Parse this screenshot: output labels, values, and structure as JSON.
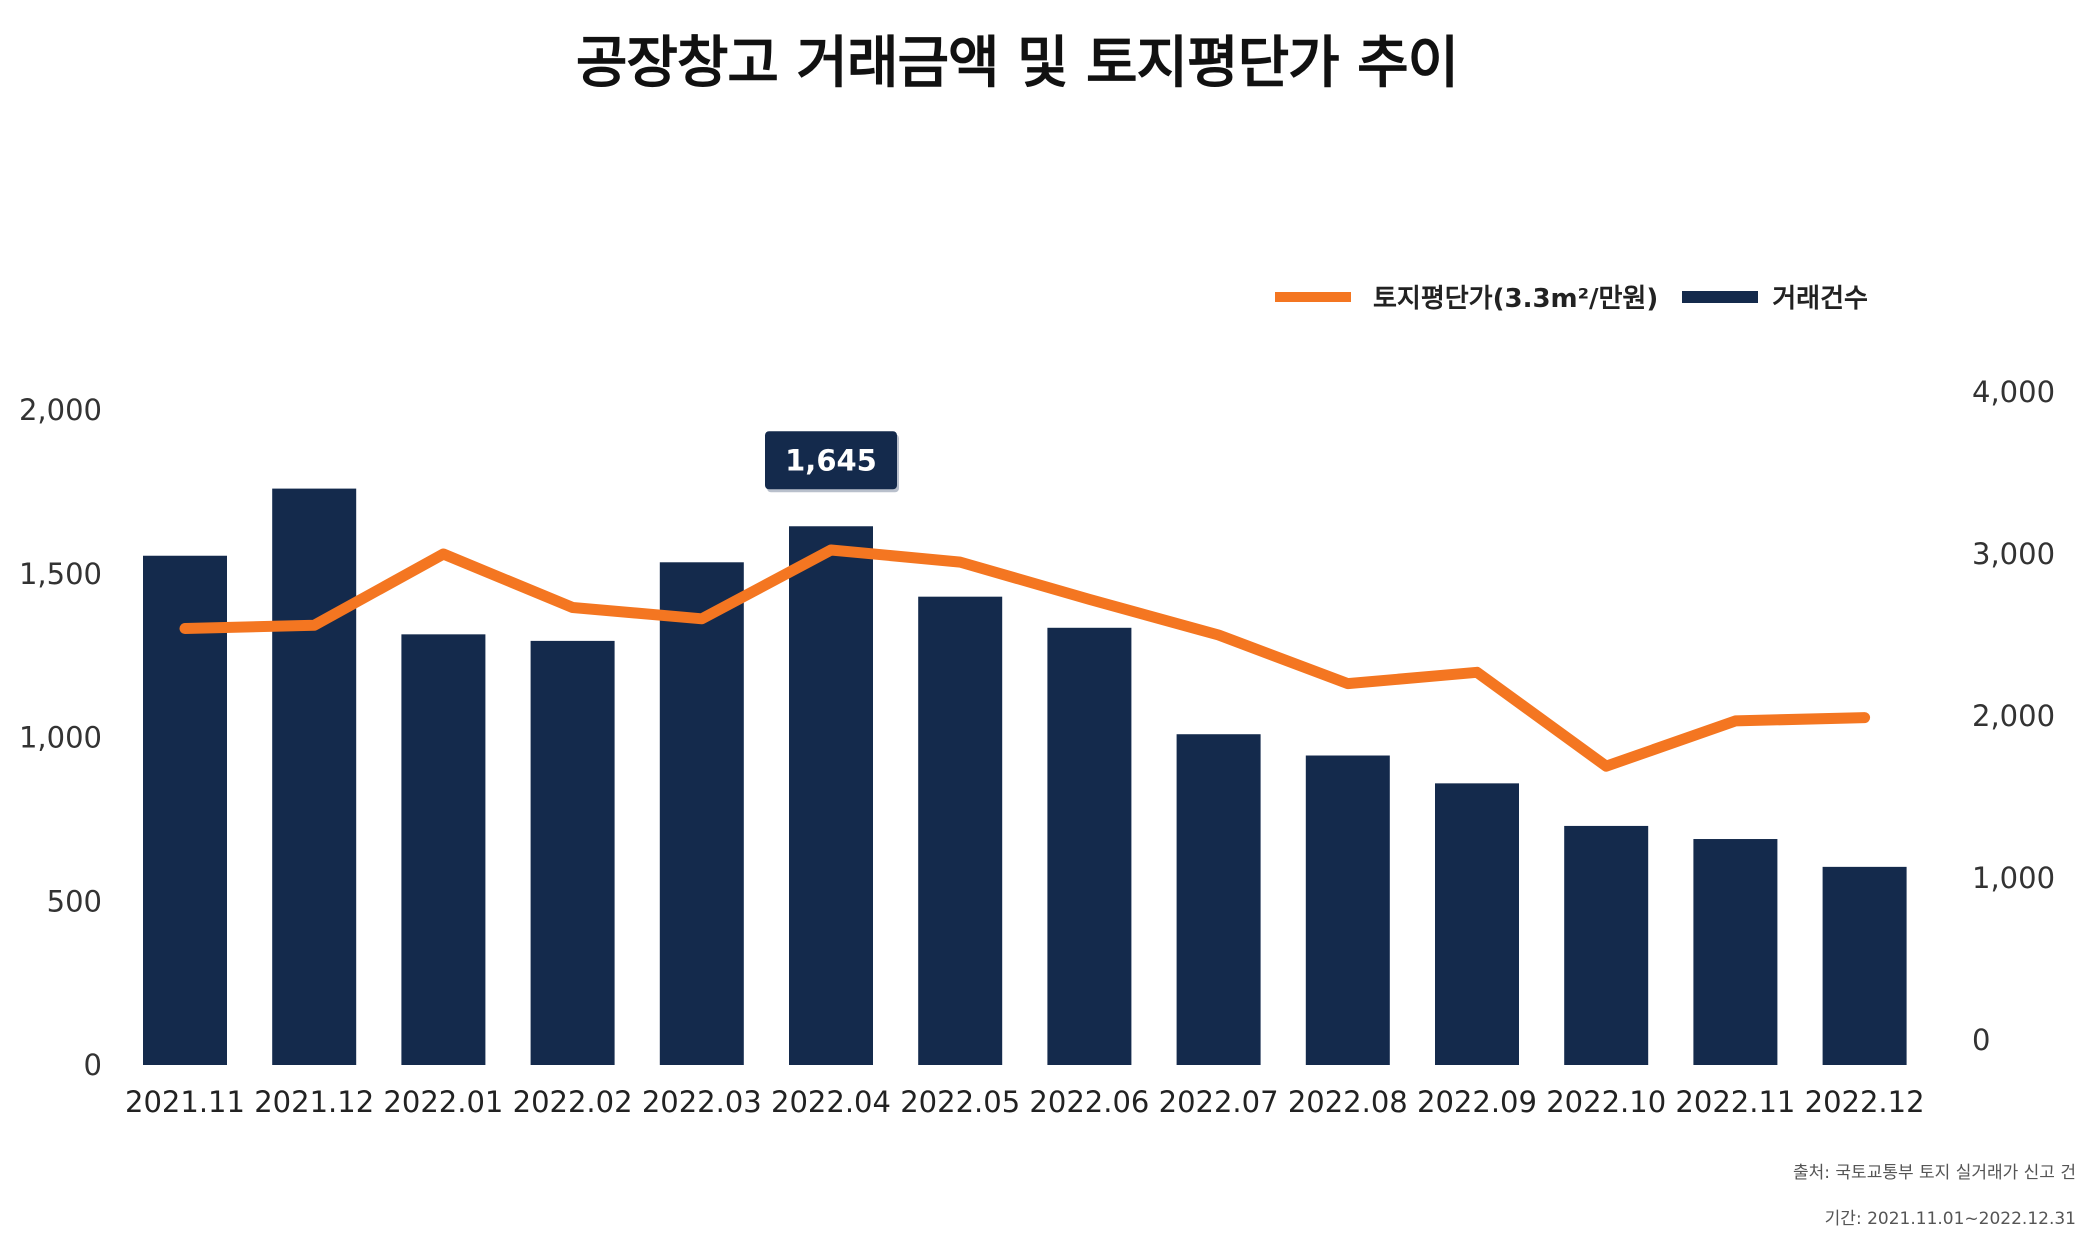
{
  "chart_data": {
    "type": "bar+line",
    "title": "공장창고 거래금액 및 토지평단가 추이",
    "categories": [
      "2021.11",
      "2021.12",
      "2022.01",
      "2022.02",
      "2022.03",
      "2022.04",
      "2022.05",
      "2022.06",
      "2022.07",
      "2022.08",
      "2022.09",
      "2022.10",
      "2022.11",
      "2022.12"
    ],
    "series": [
      {
        "name": "거래건수",
        "type": "bar",
        "axis": "left",
        "color": "#142a4c",
        "values": [
          1555,
          1760,
          1315,
          1295,
          1535,
          1645,
          1430,
          1335,
          1010,
          945,
          860,
          730,
          690,
          605
        ]
      },
      {
        "name": "토지평단가(3.3m²/만원)",
        "type": "line",
        "axis": "right",
        "color": "#f47621",
        "values": [
          2540,
          2560,
          3000,
          2670,
          2600,
          3025,
          2950,
          2720,
          2500,
          2200,
          2270,
          1690,
          1970,
          1990
        ]
      }
    ],
    "y_left": {
      "lim": [
        0,
        2000
      ],
      "ticks": [
        0,
        500,
        1000,
        1500,
        2000
      ],
      "tick_labels": [
        "0",
        "500",
        "1,000",
        "1,500",
        "2,000"
      ]
    },
    "y_right": {
      "lim": [
        0,
        4000
      ],
      "ticks": [
        0,
        1000,
        2000,
        3000,
        4000
      ],
      "tick_labels": [
        "0",
        "1,000",
        "2,000",
        "3,000",
        "4,000"
      ]
    },
    "annotation": {
      "category": "2022.04",
      "text": "1,645"
    },
    "legend_position": "top-right",
    "grid": false
  },
  "source": {
    "line1": "출처: 국토교통부 토지 실거래가 신고 건",
    "line2": "기간: 2021.11.01~2022.12.31"
  }
}
